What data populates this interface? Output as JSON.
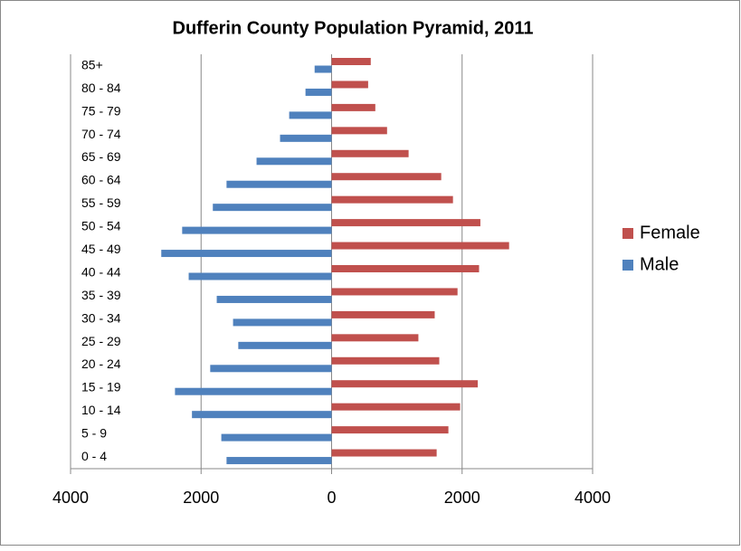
{
  "chart_data": {
    "type": "pyramid",
    "title": "Dufferin County Population Pyramid, 2011",
    "categories": [
      "0 - 4",
      "5 - 9",
      "10 - 14",
      "15 - 19",
      "20 - 24",
      "25 - 29",
      "30 - 34",
      "35 - 39",
      "40 - 44",
      "45 - 49",
      "50 - 54",
      "55 - 59",
      "60 - 64",
      "65 - 69",
      "70 - 74",
      "75 - 79",
      "80 - 84",
      "85+"
    ],
    "series": [
      {
        "name": "Female",
        "color": "#c0504d",
        "values": [
          1610,
          1790,
          1970,
          2240,
          1650,
          1330,
          1580,
          1930,
          2260,
          2720,
          2280,
          1860,
          1680,
          1180,
          850,
          670,
          560,
          600
        ]
      },
      {
        "name": "Male",
        "color": "#4f81bd",
        "values": [
          -1610,
          -1690,
          -2140,
          -2400,
          -1860,
          -1430,
          -1510,
          -1760,
          -2190,
          -2610,
          -2290,
          -1820,
          -1610,
          -1150,
          -790,
          -650,
          -400,
          -260
        ]
      }
    ],
    "xlim": [
      -4000,
      4000
    ],
    "xticks": [
      {
        "value": -4000,
        "label": "4000"
      },
      {
        "value": -2000,
        "label": "2000"
      },
      0,
      2000,
      4000
    ],
    "grid": true,
    "legend": "right"
  }
}
